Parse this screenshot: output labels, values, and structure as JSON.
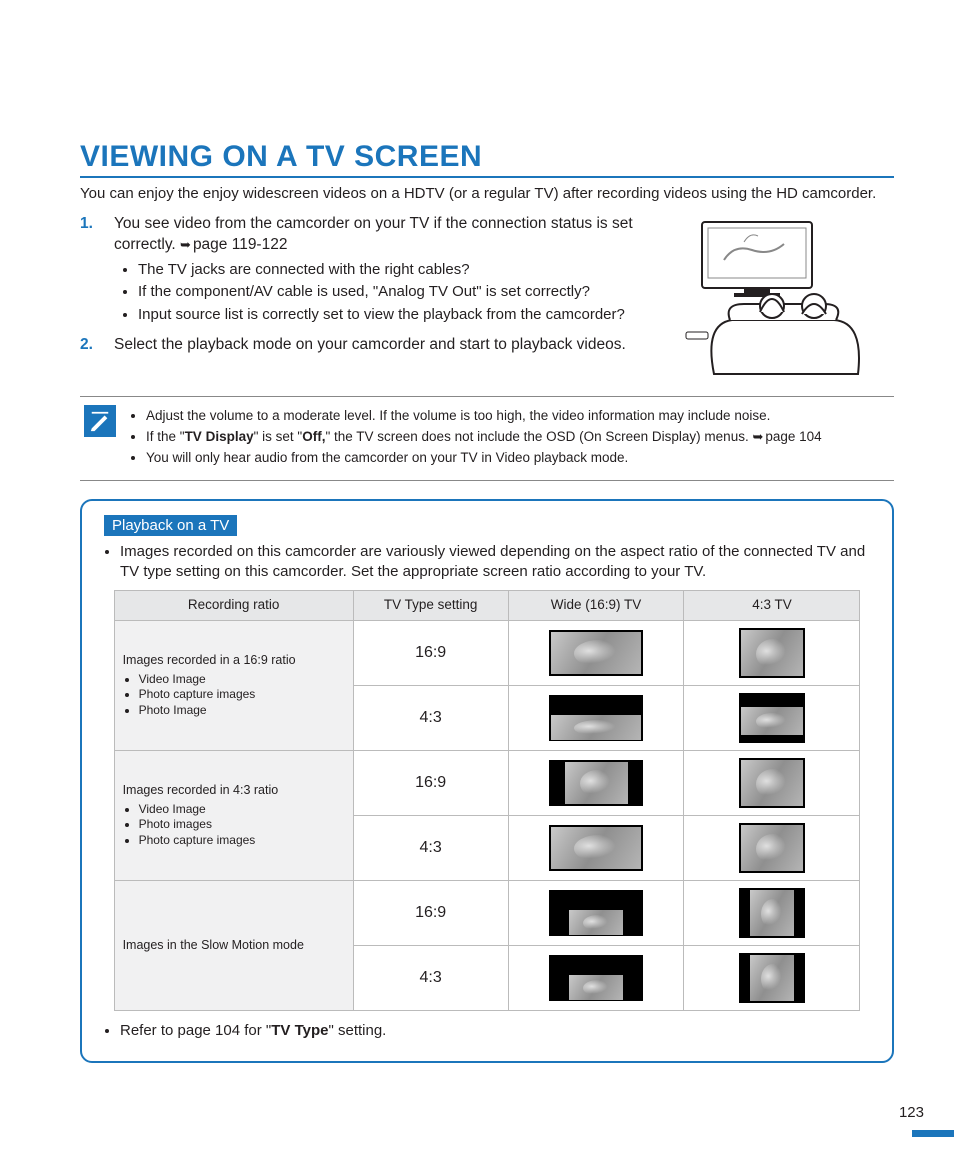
{
  "colors": {
    "accent": "#1b75bb",
    "text": "#231f20",
    "th_bg": "#e6e7e8",
    "label_bg": "#f1f1f2",
    "border": "#bbbbbb"
  },
  "title": "VIEWING ON A TV SCREEN",
  "intro": "You can enjoy the enjoy widescreen videos on a HDTV (or a regular TV) after recording videos using the HD camcorder.",
  "steps": [
    {
      "text_before": "You see video from the camcorder on your TV if the connection status is set correctly. ",
      "link": "page 119-122",
      "bullets": [
        "The TV jacks are connected with the right cables?",
        "If the component/AV cable is used, \"Analog TV Out\" is set correctly?",
        "Input source list is correctly set to view the playback from the camcorder?"
      ]
    },
    {
      "text_before": "Select the playback mode on your camcorder and start to playback videos.",
      "link": "",
      "bullets": []
    }
  ],
  "notes": [
    {
      "t": "Adjust the volume to a moderate level. If the volume is too high, the video information may include noise."
    },
    {
      "t_parts": [
        "If the \"",
        "TV Display",
        "\" is set \"",
        "Off,",
        "\" the TV screen does not include the OSD (On Screen Display) menus. "
      ],
      "link": "page 104"
    },
    {
      "t": "You will only hear audio from the camcorder on your TV in Video playback mode."
    }
  ],
  "panel": {
    "label": "Playback on a TV",
    "lead": "Images recorded on this camcorder are variously viewed depending on the aspect ratio of the connected TV and TV type setting on this camcorder. Set the appropriate screen ratio according to your TV.",
    "foot_parts": [
      "Refer to page 104 for \"",
      "TV Type",
      "\" setting."
    ]
  },
  "table": {
    "headers": [
      "Recording ratio",
      "TV Type setting",
      "Wide (16:9) TV",
      "4:3 TV"
    ],
    "groups": [
      {
        "label_title": "Images recorded in a 16:9 ratio",
        "label_items": [
          "Video Image",
          "Photo capture images",
          "Photo Image"
        ],
        "rows": [
          {
            "setting": "16:9",
            "wide": {
              "frame": "f-wide",
              "img": "i-full"
            },
            "std": {
              "frame": "f-43",
              "img": "i-full"
            }
          },
          {
            "setting": "4:3",
            "wide": {
              "frame": "f-wide",
              "img": "i-lbox"
            },
            "std": {
              "frame": "f-43",
              "img": "i-lbox"
            }
          }
        ]
      },
      {
        "label_title": "Images recorded in 4:3 ratio",
        "label_items": [
          "Video Image",
          "Photo images",
          "Photo capture images"
        ],
        "rows": [
          {
            "setting": "16:9",
            "wide": {
              "frame": "f-wide",
              "img": "i-pbox"
            },
            "std": {
              "frame": "f-43",
              "img": "i-full"
            }
          },
          {
            "setting": "4:3",
            "wide": {
              "frame": "f-wide",
              "img": "i-full"
            },
            "std": {
              "frame": "f-43",
              "img": "i-full"
            }
          }
        ]
      },
      {
        "label_title": "Images in the Slow Motion mode",
        "label_items": [],
        "rows": [
          {
            "setting": "16:9",
            "wide": {
              "frame": "f-wide",
              "img": "i-small"
            },
            "std": {
              "frame": "f-43",
              "img": "i-pbox"
            }
          },
          {
            "setting": "4:3",
            "wide": {
              "frame": "f-wide",
              "img": "i-small"
            },
            "std": {
              "frame": "f-43",
              "img": "i-pbox"
            }
          }
        ]
      }
    ]
  },
  "page_number": "123"
}
